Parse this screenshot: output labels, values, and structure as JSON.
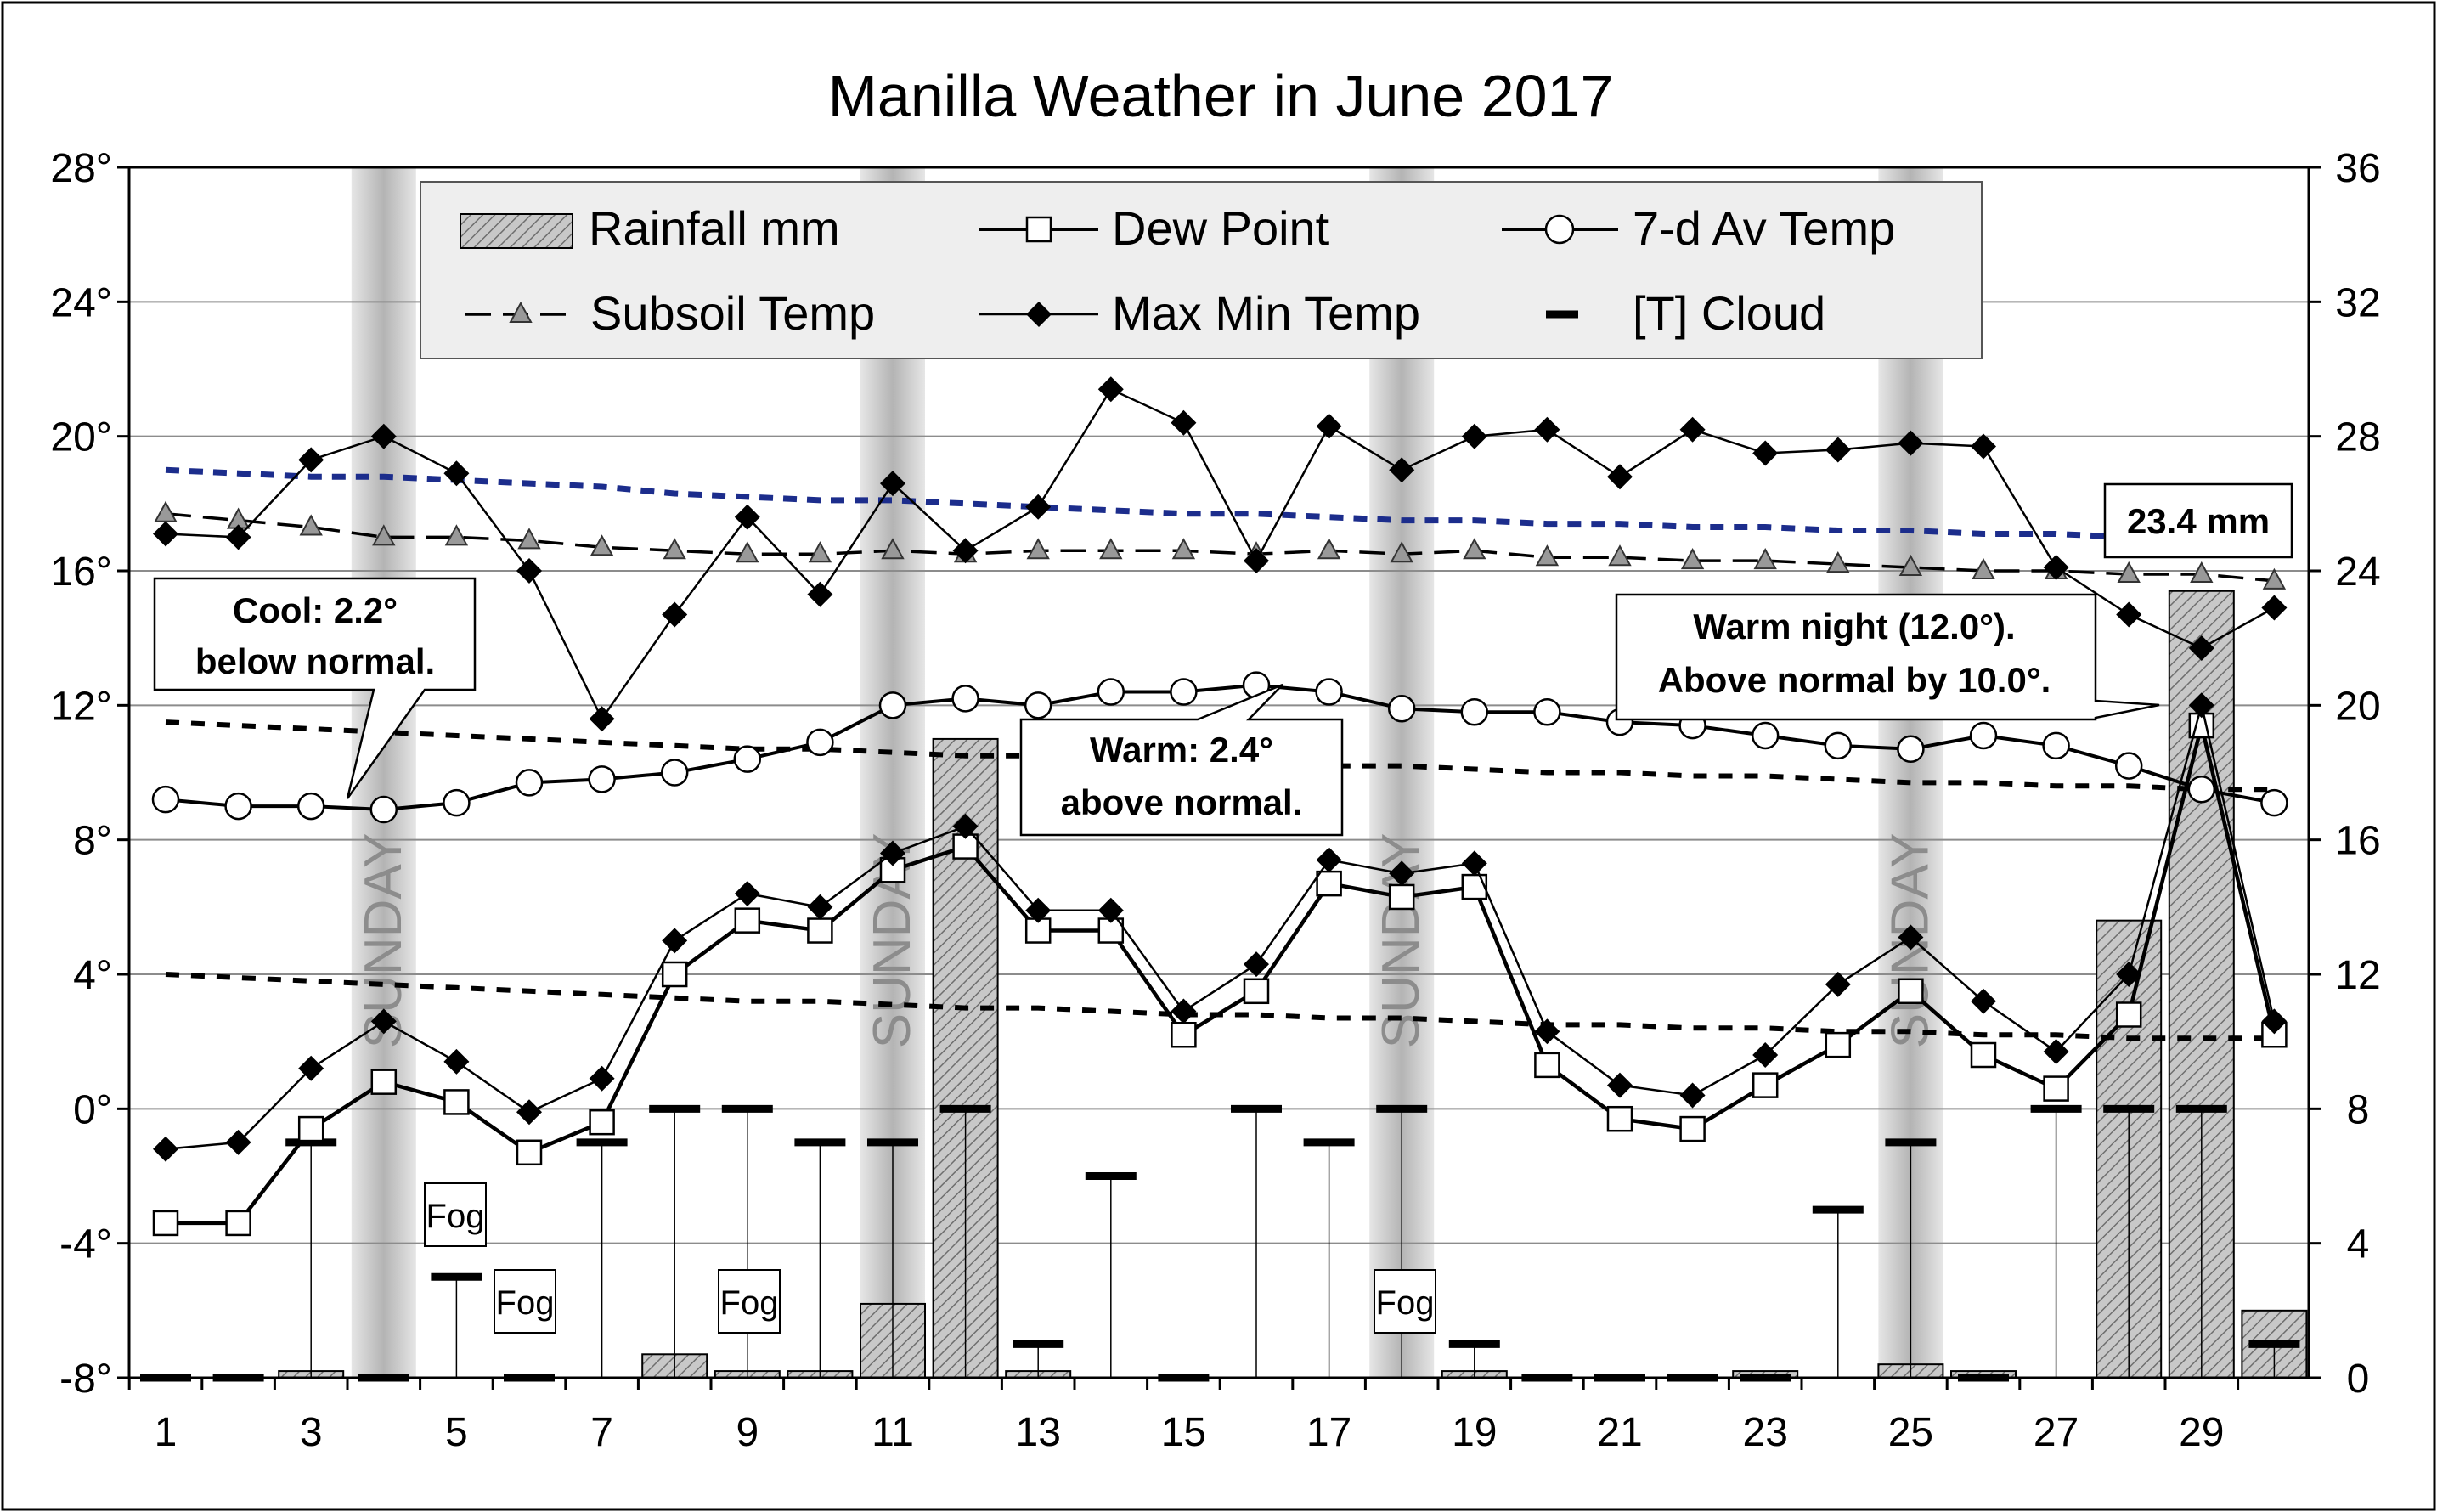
{
  "chart_data": {
    "type": "line",
    "title": "Manilla Weather in June 2017",
    "days": [
      1,
      2,
      3,
      4,
      5,
      6,
      7,
      8,
      9,
      10,
      11,
      12,
      13,
      14,
      15,
      16,
      17,
      18,
      19,
      20,
      21,
      22,
      23,
      24,
      25,
      26,
      27,
      28,
      29,
      30
    ],
    "x_tick_labels": [
      "1",
      "3",
      "5",
      "7",
      "9",
      "11",
      "13",
      "15",
      "17",
      "19",
      "21",
      "23",
      "25",
      "27",
      "29"
    ],
    "x_tick_days": [
      1,
      3,
      5,
      7,
      9,
      11,
      13,
      15,
      17,
      19,
      21,
      23,
      25,
      27,
      29
    ],
    "left_axis": {
      "ylim": [
        -8,
        28
      ],
      "ticks": [
        -8,
        -4,
        0,
        4,
        8,
        12,
        16,
        20,
        24,
        28
      ],
      "tick_labels": [
        "-8°",
        "-4°",
        "0°",
        "4°",
        "8°",
        "12°",
        "16°",
        "20°",
        "24°",
        "28°"
      ]
    },
    "right_axis": {
      "ylim": [
        0,
        36
      ],
      "ticks": [
        0,
        4,
        8,
        12,
        16,
        20,
        24,
        28,
        32,
        36
      ],
      "tick_labels": [
        "0",
        "4",
        "8",
        "12",
        "16",
        "20",
        "24",
        "28",
        "32",
        "36"
      ]
    },
    "grid": true,
    "legend": {
      "placement": "top",
      "entries": [
        {
          "label": "Rainfall mm",
          "marker": "hatched-bar"
        },
        {
          "label": "Dew Point",
          "marker": "open-square"
        },
        {
          "label": "7-d Av Temp",
          "marker": "open-circle"
        },
        {
          "label": "Subsoil Temp",
          "marker": "gray-triangle-dashed"
        },
        {
          "label": "Max Min Temp",
          "marker": "black-diamond"
        },
        {
          "label": "[T]   Cloud",
          "marker": "thick-dash"
        }
      ]
    },
    "sunday_label": "SUNDAY",
    "sunday_days": [
      4,
      11,
      18,
      25
    ],
    "series": [
      {
        "name": "Max Min Temp",
        "axis": "left",
        "kind": "max-min",
        "max": [
          17.1,
          17.0,
          19.3,
          20.0,
          18.9,
          16.0,
          11.6,
          14.7,
          17.6,
          15.3,
          18.6,
          16.6,
          17.9,
          21.4,
          20.4,
          16.3,
          20.3,
          19.0,
          20.0,
          20.2,
          18.8,
          20.2,
          19.5,
          19.6,
          19.8,
          19.7,
          16.1,
          14.7,
          13.7,
          14.9
        ],
        "min": [
          -1.2,
          -1.0,
          1.2,
          2.6,
          1.4,
          -0.1,
          0.9,
          5.0,
          6.4,
          6.0,
          7.6,
          8.4,
          5.9,
          5.9,
          2.9,
          4.3,
          7.4,
          7.0,
          7.3,
          2.3,
          0.7,
          0.4,
          1.6,
          3.7,
          5.1,
          3.2,
          1.7,
          4.0,
          12.0,
          2.6
        ]
      },
      {
        "name": "Dew Point",
        "axis": "left",
        "values": [
          -3.4,
          -3.4,
          -0.6,
          0.8,
          0.2,
          -1.3,
          -0.4,
          4.0,
          5.6,
          5.3,
          7.1,
          7.8,
          5.3,
          5.3,
          2.2,
          3.5,
          6.7,
          6.3,
          6.6,
          1.3,
          -0.3,
          -0.6,
          0.7,
          1.9,
          3.5,
          1.6,
          0.6,
          2.8,
          11.4,
          2.2
        ]
      },
      {
        "name": "7-d Av Temp",
        "axis": "left",
        "values": [
          9.2,
          9.0,
          9.0,
          8.9,
          9.1,
          9.7,
          9.8,
          10.0,
          10.4,
          10.9,
          12.0,
          12.2,
          12.0,
          12.4,
          12.4,
          12.6,
          12.4,
          11.9,
          11.8,
          11.8,
          11.5,
          11.4,
          11.1,
          10.8,
          10.7,
          11.1,
          10.8,
          10.2,
          9.5,
          9.1
        ]
      },
      {
        "name": "Subsoil Temp",
        "axis": "left",
        "values": [
          17.7,
          17.5,
          17.3,
          17.0,
          17.0,
          16.9,
          16.7,
          16.6,
          16.5,
          16.5,
          16.6,
          16.5,
          16.6,
          16.6,
          16.6,
          16.5,
          16.6,
          16.5,
          16.6,
          16.4,
          16.4,
          16.3,
          16.3,
          16.2,
          16.1,
          16.0,
          16.0,
          15.9,
          15.9,
          15.7
        ]
      },
      {
        "name": "Rainfall mm",
        "axis": "right",
        "values": [
          0.0,
          0.0,
          0.2,
          0.0,
          0.0,
          0.0,
          0.0,
          0.7,
          0.2,
          0.2,
          2.2,
          19.0,
          0.2,
          0.0,
          0.0,
          0.0,
          0.0,
          0.0,
          0.2,
          0.0,
          0.0,
          0.0,
          0.2,
          0.0,
          0.4,
          0.2,
          0.0,
          13.6,
          23.4,
          2.0
        ]
      },
      {
        "name": "Cloud",
        "axis": "right",
        "values": [
          0,
          0,
          7,
          0,
          3,
          0,
          7,
          8,
          8,
          7,
          7,
          8,
          1,
          6,
          0,
          8,
          7,
          8,
          1,
          0,
          0,
          0,
          0,
          5,
          7,
          0,
          8,
          8,
          8,
          1
        ]
      }
    ],
    "normal_lines": {
      "max": [
        19.0,
        18.9,
        18.8,
        18.8,
        18.7,
        18.6,
        18.5,
        18.3,
        18.2,
        18.1,
        18.1,
        18.0,
        17.9,
        17.8,
        17.7,
        17.7,
        17.6,
        17.5,
        17.5,
        17.4,
        17.4,
        17.3,
        17.3,
        17.2,
        17.2,
        17.1,
        17.1,
        17.0,
        17.0,
        16.9
      ],
      "mean": [
        11.5,
        11.4,
        11.3,
        11.2,
        11.1,
        11.0,
        10.9,
        10.8,
        10.7,
        10.7,
        10.6,
        10.5,
        10.5,
        10.4,
        10.3,
        10.3,
        10.2,
        10.2,
        10.1,
        10.0,
        10.0,
        9.9,
        9.9,
        9.8,
        9.7,
        9.7,
        9.6,
        9.6,
        9.5,
        9.5
      ],
      "min": [
        4.0,
        3.9,
        3.8,
        3.7,
        3.6,
        3.5,
        3.4,
        3.3,
        3.2,
        3.2,
        3.1,
        3.0,
        3.0,
        2.9,
        2.8,
        2.8,
        2.7,
        2.7,
        2.6,
        2.5,
        2.5,
        2.4,
        2.4,
        2.3,
        2.3,
        2.2,
        2.2,
        2.1,
        2.1,
        2.1
      ]
    },
    "annotations": {
      "fog": {
        "label": "Fog",
        "days": [
          5,
          6,
          9,
          18
        ]
      },
      "callouts": [
        {
          "lines": [
            "Cool: 2.2°",
            "below normal."
          ],
          "target_day": 4
        },
        {
          "lines": [
            "Warm: 2.4°",
            "above normal."
          ],
          "target_day": 16
        },
        {
          "lines": [
            "Warm night (12.0°).",
            "Above normal by 10.0°."
          ],
          "target_day": 29
        },
        {
          "lines": [
            "23.4 mm"
          ],
          "target_day": 29
        }
      ]
    }
  }
}
